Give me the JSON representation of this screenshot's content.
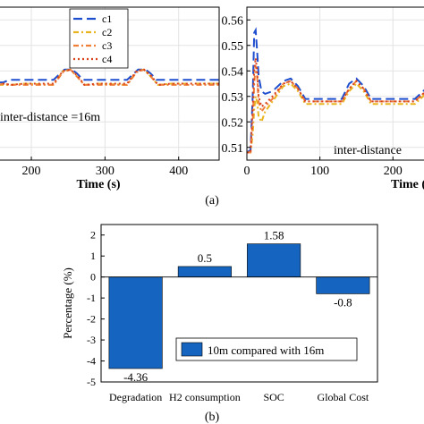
{
  "chart_data": [
    {
      "panel": "a-left",
      "type": "line",
      "xlabel": "Time (s)",
      "ylabel": "",
      "xlim": [
        155,
        455
      ],
      "ylim": [
        0.505,
        0.565
      ],
      "x_ticks": [
        200,
        300,
        400
      ],
      "annotation": "inter-distance =16m",
      "legend": [
        "c1",
        "c2",
        "c3",
        "c4"
      ],
      "legend_position": "top-right",
      "grid": true,
      "series": [
        {
          "name": "c1",
          "color": "#1f4fcf",
          "dash": "10,5",
          "x": [
            155,
            162,
            170,
            190,
            230,
            245,
            255,
            262,
            270,
            290,
            330,
            345,
            355,
            362,
            370,
            390,
            440,
            455
          ],
          "y": [
            0.5355,
            0.5355,
            0.5365,
            0.5365,
            0.5365,
            0.5405,
            0.5405,
            0.539,
            0.5365,
            0.5365,
            0.5365,
            0.5405,
            0.5405,
            0.539,
            0.5365,
            0.5365,
            0.5365,
            0.5365
          ]
        },
        {
          "name": "c2",
          "color": "#e8b520",
          "dash": "6,3,2,3",
          "x": [
            155,
            162,
            172,
            190,
            230,
            243,
            253,
            263,
            272,
            290,
            330,
            343,
            353,
            363,
            372,
            390,
            440,
            455
          ],
          "y": [
            0.5345,
            0.5345,
            0.5345,
            0.535,
            0.5345,
            0.54,
            0.5405,
            0.5375,
            0.5345,
            0.535,
            0.5345,
            0.54,
            0.5405,
            0.5375,
            0.5345,
            0.535,
            0.535,
            0.535
          ]
        },
        {
          "name": "c3",
          "color": "#f07f3a",
          "dash": "6,3,2,3",
          "x": [
            155,
            162,
            172,
            190,
            230,
            243,
            253,
            263,
            272,
            290,
            330,
            343,
            353,
            363,
            372,
            390,
            440,
            455
          ],
          "y": [
            0.5345,
            0.535,
            0.5345,
            0.5345,
            0.5345,
            0.5395,
            0.5405,
            0.5375,
            0.5345,
            0.5345,
            0.5345,
            0.5395,
            0.5405,
            0.5375,
            0.5345,
            0.5345,
            0.5345,
            0.5345
          ]
        },
        {
          "name": "c4",
          "color": "#d9401c",
          "dash": "2,3",
          "x": [
            155,
            162,
            172,
            190,
            230,
            243,
            253,
            263,
            272,
            290,
            330,
            343,
            353,
            363,
            372,
            390,
            440,
            455
          ],
          "y": [
            0.535,
            0.535,
            0.5345,
            0.535,
            0.535,
            0.54,
            0.5405,
            0.538,
            0.5345,
            0.535,
            0.535,
            0.54,
            0.5405,
            0.538,
            0.5345,
            0.535,
            0.535,
            0.535
          ]
        }
      ]
    },
    {
      "panel": "a-right",
      "type": "line",
      "xlabel": "Time (",
      "ylabel": "",
      "xlim": [
        0,
        245
      ],
      "ylim": [
        0.505,
        0.565
      ],
      "x_ticks": [
        0,
        100,
        200
      ],
      "y_ticks": [
        0.51,
        0.52,
        0.53,
        0.54,
        0.55,
        0.56
      ],
      "annotation": "inter-distance",
      "grid": true,
      "series": [
        {
          "name": "c1",
          "color": "#1f4fcf",
          "dash": "10,5",
          "x": [
            0,
            5,
            8,
            10,
            12,
            14,
            16,
            20,
            25,
            35,
            50,
            60,
            70,
            80,
            100,
            130,
            140,
            150,
            160,
            170,
            190,
            230,
            245
          ],
          "y": [
            0.508,
            0.509,
            0.53,
            0.555,
            0.556,
            0.548,
            0.538,
            0.532,
            0.531,
            0.532,
            0.536,
            0.537,
            0.534,
            0.529,
            0.529,
            0.529,
            0.535,
            0.537,
            0.534,
            0.529,
            0.529,
            0.529,
            0.533
          ]
        },
        {
          "name": "c2",
          "color": "#e8b520",
          "dash": "6,3,2,3",
          "x": [
            0,
            5,
            8,
            10,
            12,
            14,
            16,
            20,
            25,
            35,
            50,
            60,
            70,
            80,
            100,
            130,
            140,
            150,
            160,
            170,
            190,
            230,
            245
          ],
          "y": [
            0.508,
            0.508,
            0.515,
            0.525,
            0.53,
            0.528,
            0.522,
            0.52,
            0.524,
            0.528,
            0.534,
            0.535,
            0.532,
            0.527,
            0.527,
            0.527,
            0.532,
            0.535,
            0.532,
            0.527,
            0.527,
            0.527,
            0.531
          ]
        },
        {
          "name": "c3",
          "color": "#f07f3a",
          "dash": "6,3,2,3",
          "x": [
            0,
            5,
            8,
            10,
            12,
            14,
            16,
            20,
            25,
            35,
            50,
            60,
            70,
            80,
            100,
            130,
            140,
            150,
            160,
            170,
            190,
            230,
            245
          ],
          "y": [
            0.508,
            0.508,
            0.52,
            0.535,
            0.542,
            0.538,
            0.528,
            0.524,
            0.526,
            0.529,
            0.535,
            0.536,
            0.533,
            0.528,
            0.528,
            0.528,
            0.533,
            0.536,
            0.533,
            0.528,
            0.528,
            0.528,
            0.532
          ]
        },
        {
          "name": "c4",
          "color": "#d9401c",
          "dash": "2,3",
          "x": [
            0,
            5,
            8,
            10,
            12,
            14,
            16,
            20,
            25,
            35,
            50,
            60,
            70,
            80,
            100,
            130,
            140,
            150,
            160,
            170,
            190,
            230,
            245
          ],
          "y": [
            0.508,
            0.508,
            0.525,
            0.54,
            0.545,
            0.54,
            0.53,
            0.526,
            0.527,
            0.53,
            0.535,
            0.536,
            0.533,
            0.528,
            0.528,
            0.528,
            0.533,
            0.536,
            0.533,
            0.528,
            0.528,
            0.528,
            0.532
          ]
        }
      ]
    },
    {
      "panel": "b",
      "type": "bar",
      "categories": [
        "Degradation",
        "H2 consumption",
        "SOC",
        "Global Cost"
      ],
      "values": [
        -4.36,
        0.5,
        1.58,
        -0.8
      ],
      "data_labels": [
        "-4.36",
        "0.5",
        "1.58",
        "-0.8"
      ],
      "ylabel": "Percentage (%)",
      "ylim": [
        -5,
        2.5
      ],
      "y_ticks": [
        -5,
        -4,
        -3,
        -2,
        -1,
        0,
        1,
        2
      ],
      "legend": [
        "10m compared with 16m"
      ],
      "legend_position": "bottom-right",
      "bar_color": "#1565c0"
    }
  ],
  "captions": {
    "a": "(a)",
    "b": "(b)"
  }
}
